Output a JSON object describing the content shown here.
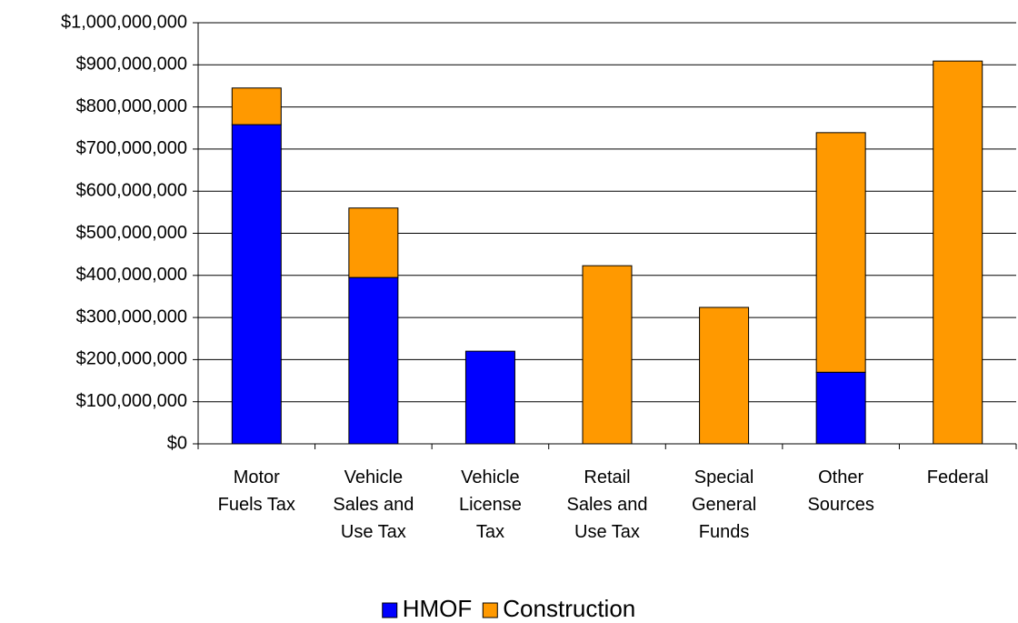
{
  "chart_data": {
    "type": "stacked_bar",
    "categories": [
      "Motor\nFuels Tax",
      "Vehicle\nSales and\nUse Tax",
      "Vehicle\nLicense\nTax",
      "Retail\nSales and\nUse Tax",
      "Special\nGeneral\nFunds",
      "Other\nSources",
      "Federal"
    ],
    "series": [
      {
        "name": "HMOF",
        "color": "#0000ff",
        "values": [
          758000000,
          395000000,
          220000000,
          0,
          0,
          170000000,
          0
        ]
      },
      {
        "name": "Construction",
        "color": "#ff9900",
        "values": [
          87000000,
          165000000,
          0,
          423000000,
          324000000,
          569000000,
          909000000
        ]
      }
    ],
    "ylim": [
      0,
      1000000000
    ],
    "yticks": [
      {
        "value": 0,
        "label": "$0"
      },
      {
        "value": 100000000,
        "label": "$100,000,000"
      },
      {
        "value": 200000000,
        "label": "$200,000,000"
      },
      {
        "value": 300000000,
        "label": "$300,000,000"
      },
      {
        "value": 400000000,
        "label": "$400,000,000"
      },
      {
        "value": 500000000,
        "label": "$500,000,000"
      },
      {
        "value": 600000000,
        "label": "$600,000,000"
      },
      {
        "value": 700000000,
        "label": "$700,000,000"
      },
      {
        "value": 800000000,
        "label": "$800,000,000"
      },
      {
        "value": 900000000,
        "label": "$900,000,000"
      },
      {
        "value": 1000000000,
        "label": "$1,000,000,000"
      }
    ],
    "grid": true,
    "legend": "bottom"
  }
}
